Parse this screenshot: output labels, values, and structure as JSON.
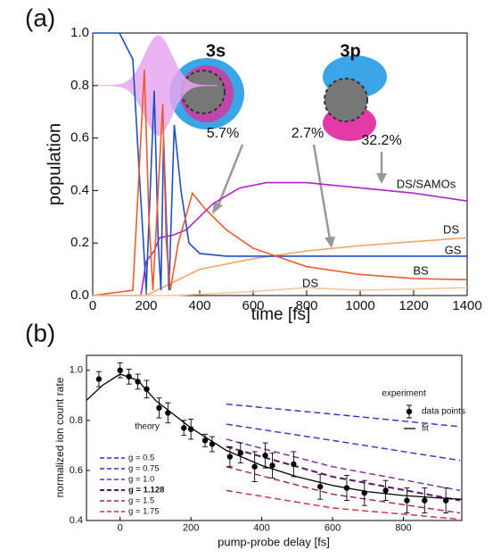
{
  "chart_data": [
    {
      "type": "line",
      "label": "(a)",
      "xlabel": "time [fs]",
      "ylabel": "population",
      "xlim": [
        0,
        1400
      ],
      "ylim": [
        0,
        1
      ],
      "xticks": [
        0,
        200,
        400,
        600,
        800,
        1000,
        1200,
        1400
      ],
      "yticks": [
        {
          "value": 0,
          "label": "0.0"
        },
        0.2,
        0.4,
        0.6,
        0.8,
        {
          "value": 1,
          "label": "1.0"
        }
      ],
      "series": [
        {
          "name": "DS/SAMOs",
          "color": "#b41fd0",
          "x": [
            0,
            180,
            200,
            230,
            250,
            300,
            350,
            450,
            550,
            650,
            800,
            1000,
            1200,
            1400
          ],
          "values": [
            0,
            0,
            0.13,
            0.17,
            0.22,
            0.23,
            0.25,
            0.35,
            0.41,
            0.43,
            0.43,
            0.41,
            0.39,
            0.36
          ]
        },
        {
          "name": "DS",
          "color": "#f5a36a",
          "x": [
            0,
            200,
            300,
            400,
            600,
            800,
            1000,
            1200,
            1400
          ],
          "values": [
            0,
            0,
            0.05,
            0.1,
            0.14,
            0.17,
            0.19,
            0.205,
            0.22
          ]
        },
        {
          "name": "GS",
          "color": "#1f4fc4",
          "x": [
            0,
            100,
            150,
            175,
            200,
            215,
            230,
            245,
            255,
            265,
            275,
            285,
            305,
            330,
            360,
            400,
            500,
            800,
            1100,
            1400
          ],
          "values": [
            1,
            1,
            0.9,
            0.45,
            0.02,
            0.4,
            0.78,
            0.2,
            0.02,
            0.6,
            0.3,
            0.02,
            0.65,
            0.4,
            0.2,
            0.16,
            0.15,
            0.15,
            0.15,
            0.15
          ]
        },
        {
          "name": "BS",
          "color": "#ee5a2c",
          "x": [
            0,
            150,
            175,
            193,
            210,
            225,
            250,
            262,
            275,
            290,
            320,
            373,
            420,
            500,
            600,
            800,
            1000,
            1200,
            1400
          ],
          "values": [
            0,
            0.02,
            0.5,
            0.86,
            0.3,
            0.02,
            0.5,
            0.73,
            0.2,
            0.02,
            0.2,
            0.39,
            0.33,
            0.25,
            0.18,
            0.11,
            0.08,
            0.065,
            0.06
          ]
        },
        {
          "name": "DS",
          "color": "#f7c79a",
          "x": [
            0,
            300,
            400,
            600,
            800,
            1000,
            1200,
            1400
          ],
          "values": [
            0,
            0,
            0.005,
            0.015,
            0.03,
            0.02,
            0.025,
            0.03
          ]
        }
      ],
      "annotations": [
        "3s",
        "3p",
        "5.7%",
        "2.7%",
        "32.2%"
      ]
    },
    {
      "type": "errorbar",
      "label": "(b)",
      "xlabel": "pump-probe delay [fs]",
      "ylabel": "normalized ion count rate",
      "xlim": [
        -95,
        965
      ],
      "ylim": [
        0.4,
        1.06
      ],
      "xticks": [
        0,
        200,
        400,
        600,
        800
      ],
      "yticks": [
        0.4,
        0.6,
        0.8,
        {
          "value": 1,
          "label": "1.0"
        }
      ],
      "legend_title": "experiment",
      "points": {
        "name": "data points",
        "color": "#000000",
        "x": [
          -60,
          0,
          25,
          50,
          75,
          110,
          135,
          180,
          200,
          240,
          260,
          310,
          340,
          380,
          410,
          430,
          490,
          565,
          640,
          690,
          750,
          810,
          860,
          920
        ],
        "values": [
          0.965,
          1.0,
          0.975,
          0.955,
          0.925,
          0.85,
          0.83,
          0.77,
          0.765,
          0.72,
          0.705,
          0.655,
          0.67,
          0.615,
          0.66,
          0.62,
          0.625,
          0.535,
          0.53,
          0.51,
          0.52,
          0.48,
          0.48,
          0.48
        ],
        "errors": [
          0.03,
          0.03,
          0.03,
          0.03,
          0.035,
          0.04,
          0.04,
          0.03,
          0.04,
          0.025,
          0.03,
          0.04,
          0.04,
          0.06,
          0.05,
          0.05,
          0.05,
          0.05,
          0.05,
          0.05,
          0.04,
          0.05,
          0.05,
          0.05
        ]
      },
      "fit": {
        "name": "fit",
        "color": "#000000",
        "x": [
          -95,
          -50,
          0,
          50,
          100,
          200,
          300,
          400,
          500,
          600,
          700,
          800,
          900,
          965
        ],
        "values": [
          0.88,
          0.94,
          0.985,
          0.96,
          0.88,
          0.77,
          0.68,
          0.62,
          0.575,
          0.54,
          0.515,
          0.5,
          0.49,
          0.485
        ]
      },
      "theory_title": "theory",
      "series": [
        {
          "name": "g = 0.5",
          "color": "#2233cc",
          "x": [
            300,
            600,
            960
          ],
          "values": [
            0.865,
            0.825,
            0.775
          ]
        },
        {
          "name": "g = 0.75",
          "color": "#3b2ccc",
          "x": [
            300,
            600,
            960
          ],
          "values": [
            0.785,
            0.72,
            0.64
          ]
        },
        {
          "name": "g = 1.0",
          "color": "#7a2aa0",
          "x": [
            300,
            600,
            960
          ],
          "values": [
            0.725,
            0.615,
            0.52
          ]
        },
        {
          "name": "g = 1.128",
          "color": "#5e1466",
          "bold": true,
          "x": [
            300,
            600,
            960
          ],
          "values": [
            0.695,
            0.575,
            0.48
          ]
        },
        {
          "name": "g = 1.5",
          "color": "#a0204a",
          "x": [
            300,
            600,
            960
          ],
          "values": [
            0.615,
            0.505,
            0.43
          ]
        },
        {
          "name": "g = 1.75",
          "color": "#d0283a",
          "x": [
            300,
            600,
            960
          ],
          "values": [
            0.52,
            0.45,
            0.405
          ]
        }
      ]
    }
  ]
}
